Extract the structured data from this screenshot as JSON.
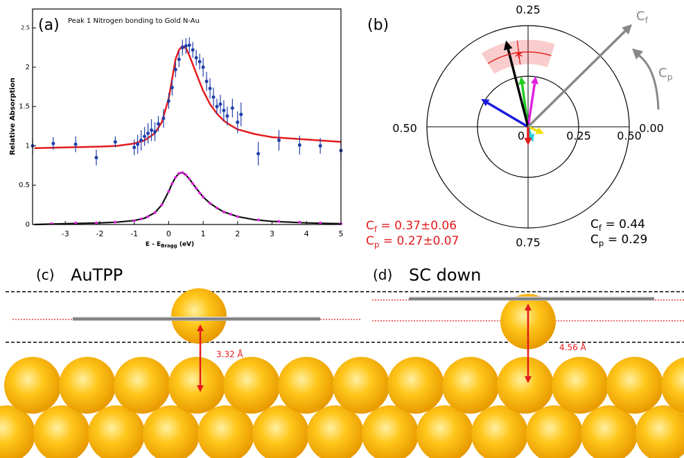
{
  "chart_data": [
    {
      "type": "line",
      "panel_label": "(a)",
      "title": "Peak 1 Nitrogen bonding to Gold  N-Au",
      "ylabel": "Relative Absorption",
      "xlabel": {
        "main": "E - E",
        "sub": "Bragg",
        "unit": " (eV)"
      },
      "xlim": [
        -3.95,
        5
      ],
      "ylim": [
        0,
        2.74
      ],
      "xticks": [
        -3,
        -2,
        -1,
        0,
        1,
        2,
        3,
        4,
        5
      ],
      "yticks": [
        0,
        0.5,
        1,
        1.5,
        2,
        2.5
      ],
      "series": [
        {
          "style": "line",
          "color": "#e41a1c",
          "x": [
            -3.9,
            -3,
            -2,
            -1.5,
            -1,
            -0.7,
            -0.4,
            -0.2,
            0,
            0.1,
            0.2,
            0.3,
            0.4,
            0.5,
            0.6,
            0.8,
            1,
            1.2,
            1.4,
            1.6,
            1.8,
            2,
            2.5,
            3,
            4,
            5
          ],
          "values": [
            0.97,
            0.98,
            0.99,
            1.0,
            1.03,
            1.07,
            1.16,
            1.3,
            1.6,
            1.85,
            2.1,
            2.22,
            2.27,
            2.24,
            2.15,
            1.92,
            1.7,
            1.53,
            1.41,
            1.32,
            1.26,
            1.21,
            1.15,
            1.11,
            1.08,
            1.05
          ]
        },
        {
          "style": "markers",
          "color": "#1f3fa8",
          "x": [
            -3.95,
            -3.35,
            -2.7,
            -2.1,
            -1.55,
            -1.0,
            -0.9,
            -0.8,
            -0.7,
            -0.6,
            -0.5,
            -0.4,
            -0.3,
            -0.15,
            0.0,
            0.1,
            0.2,
            0.3,
            0.4,
            0.5,
            0.6,
            0.7,
            0.8,
            0.9,
            1.0,
            1.1,
            1.2,
            1.3,
            1.4,
            1.5,
            1.6,
            1.7,
            1.85,
            2.0,
            2.1,
            2.6,
            3.2,
            3.8,
            4.4,
            5.0
          ],
          "values": [
            1.0,
            1.03,
            1.02,
            0.85,
            1.05,
            0.98,
            1.02,
            1.07,
            1.12,
            1.16,
            1.2,
            1.18,
            1.28,
            1.35,
            1.57,
            1.74,
            1.97,
            2.1,
            2.25,
            2.27,
            2.28,
            2.22,
            2.12,
            2.07,
            2.0,
            1.82,
            1.73,
            1.62,
            1.5,
            1.53,
            1.45,
            1.38,
            1.48,
            1.3,
            1.4,
            0.9,
            1.07,
            1.01,
            1.0,
            0.94
          ],
          "errors": [
            0.1,
            0.08,
            0.1,
            0.1,
            0.07,
            0.1,
            0.12,
            0.13,
            0.12,
            0.13,
            0.14,
            0.12,
            0.1,
            0.12,
            0.1,
            0.1,
            0.1,
            0.1,
            0.1,
            0.1,
            0.1,
            0.1,
            0.1,
            0.1,
            0.12,
            0.12,
            0.13,
            0.12,
            0.1,
            0.12,
            0.13,
            0.12,
            0.12,
            0.14,
            0.15,
            0.15,
            0.13,
            0.12,
            0.1,
            0.13
          ]
        },
        {
          "style": "line",
          "color": "#111111",
          "x": [
            -3.9,
            -3,
            -2,
            -1.5,
            -1,
            -0.7,
            -0.4,
            -0.2,
            0,
            0.1,
            0.2,
            0.3,
            0.4,
            0.5,
            0.6,
            0.8,
            1,
            1.2,
            1.4,
            1.6,
            1.8,
            2,
            2.5,
            3,
            4,
            5
          ],
          "values": [
            0.0,
            0.01,
            0.02,
            0.03,
            0.05,
            0.08,
            0.15,
            0.25,
            0.42,
            0.52,
            0.6,
            0.65,
            0.66,
            0.63,
            0.58,
            0.46,
            0.35,
            0.27,
            0.21,
            0.16,
            0.13,
            0.1,
            0.06,
            0.04,
            0.02,
            0.01
          ]
        },
        {
          "style": "markers",
          "color": "#e020e0",
          "x": [
            -3.4,
            -2.7,
            -2.1,
            -1.55,
            -1.0,
            -0.8,
            -0.6,
            -0.4,
            -0.2,
            0,
            0.1,
            0.2,
            0.3,
            0.4,
            0.5,
            0.6,
            0.7,
            0.8,
            0.9,
            1.0,
            1.2,
            1.4,
            1.6,
            1.8,
            2.0,
            2.6,
            3.2,
            3.8,
            4.4,
            5.0
          ],
          "values": [
            0.01,
            0.02,
            0.02,
            0.03,
            0.05,
            0.07,
            0.1,
            0.15,
            0.25,
            0.42,
            0.52,
            0.6,
            0.65,
            0.66,
            0.63,
            0.58,
            0.52,
            0.46,
            0.4,
            0.35,
            0.27,
            0.21,
            0.16,
            0.13,
            0.1,
            0.06,
            0.04,
            0.03,
            0.02,
            0.01
          ]
        }
      ]
    },
    {
      "type": "polar",
      "panel_label": "(b)",
      "rlim": [
        0,
        0.5
      ],
      "rticks": [
        0,
        0.25,
        {
          "value": 0.5,
          "label": "0.50"
        }
      ],
      "thetaticks": [
        {
          "value": 0,
          "label": "0.00"
        },
        0.25,
        {
          "value": 0.5,
          "label": "0.50"
        },
        0.75
      ],
      "radius_label": {
        "symbol": "C",
        "sub": "f"
      },
      "angle_label": {
        "symbol": "C",
        "sub": "p"
      },
      "vectors": [
        {
          "color": "#1a1adb",
          "cf": 0.27,
          "cp": 0.415
        },
        {
          "color": "#22cc22",
          "cf": 0.25,
          "cp": 0.272
        },
        {
          "color": "#e020e0",
          "cf": 0.253,
          "cp": 0.226
        },
        {
          "color": "#f0e000",
          "cf": 0.086,
          "cp": 0.935
        },
        {
          "color": "#22ccdd",
          "cf": 0.079,
          "cp": 0.8
        },
        {
          "color": "#e41a1c",
          "cf": 0.092,
          "cp": 0.75
        }
      ],
      "model": {
        "color": "#000000",
        "cf": 0.44,
        "cp": 0.29,
        "cf_label": {
          "symbol": "C",
          "sub": "f",
          "text": " = 0.44"
        },
        "cp_label": {
          "symbol": "C",
          "sub": "p",
          "text": " = 0.29"
        }
      },
      "fit": {
        "color": "#e41a1c",
        "cf": 0.37,
        "cf_err": 0.06,
        "cp": 0.27,
        "cp_err": 0.07,
        "cf_label": {
          "symbol": "C",
          "sub": "f",
          "text": " = 0.37±0.06"
        },
        "cp_label": {
          "symbol": "C",
          "sub": "p",
          "text": " = 0.27±0.07"
        }
      }
    }
  ],
  "panels": [
    {
      "label": "(c)",
      "title": "AuTPP",
      "distance": "3.32 Å"
    },
    {
      "label": "(d)",
      "title": "SC down",
      "distance": "4.56 Å"
    }
  ]
}
